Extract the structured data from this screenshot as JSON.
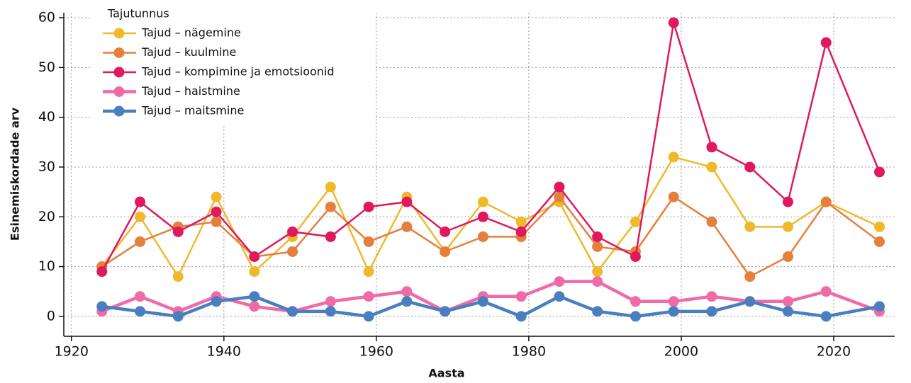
{
  "chart_data": {
    "type": "line",
    "x_label": "Aasta",
    "y_label": "Esinemiskordade arv",
    "legend_title": "Tajutunnus",
    "x": [
      1924,
      1929,
      1934,
      1939,
      1944,
      1949,
      1954,
      1959,
      1964,
      1969,
      1974,
      1979,
      1984,
      1989,
      1994,
      1999,
      2004,
      2009,
      2014,
      2019,
      2026
    ],
    "series": [
      {
        "name": "Tajud – nägemine",
        "color": "#f0b92c",
        "values": [
          10,
          20,
          8,
          24,
          9,
          16,
          26,
          9,
          24,
          13,
          23,
          19,
          23,
          9,
          19,
          32,
          30,
          18,
          18,
          23,
          18
        ]
      },
      {
        "name": "Tajud – kuulmine",
        "color": "#e57f3c",
        "values": [
          10,
          15,
          18,
          19,
          12,
          13,
          22,
          15,
          18,
          13,
          16,
          16,
          24,
          14,
          13,
          24,
          19,
          8,
          12,
          23,
          15
        ]
      },
      {
        "name": "Tajud – kompimine ja emotsioonid",
        "color": "#e0185e",
        "values": [
          9,
          23,
          17,
          21,
          12,
          17,
          16,
          22,
          23,
          17,
          20,
          17,
          26,
          16,
          12,
          59,
          34,
          30,
          23,
          55,
          29
        ]
      },
      {
        "name": "Tajud – haistmine",
        "color": "#f06aa8",
        "values": [
          1,
          4,
          1,
          4,
          2,
          1,
          3,
          4,
          5,
          1,
          4,
          4,
          7,
          7,
          3,
          3,
          4,
          3,
          3,
          5,
          1
        ]
      },
      {
        "name": "Tajud – maitsmine",
        "color": "#4a7fbf",
        "values": [
          2,
          1,
          0,
          3,
          4,
          1,
          1,
          0,
          3,
          1,
          3,
          0,
          4,
          1,
          0,
          1,
          1,
          3,
          1,
          0,
          2
        ]
      }
    ],
    "xlim": [
      1919,
      2028
    ],
    "xticks": [
      1920,
      1940,
      1960,
      1980,
      2000,
      2020
    ],
    "ylim": [
      -4,
      61
    ],
    "yticks": [
      0,
      10,
      20,
      30,
      40,
      50,
      60
    ],
    "grid": true,
    "legend": "upper left"
  }
}
